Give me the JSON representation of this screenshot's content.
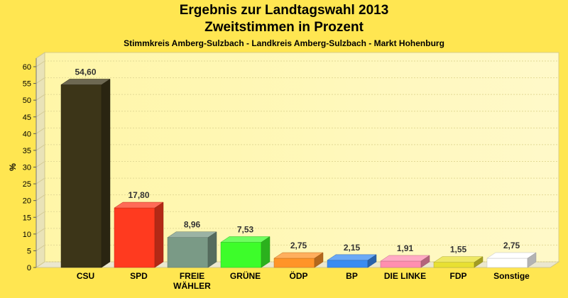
{
  "title": "Ergebnis zur Landtagswahl 2013",
  "subtitle": "Zweitstimmen in Prozent",
  "subsubtitle": "Stimmkreis Amberg-Sulzbach - Landkreis Amberg-Sulzbach - Markt Hohenburg",
  "chart_data": {
    "type": "bar",
    "title": "Ergebnis zur Landtagswahl 2013",
    "subtitle": "Zweitstimmen in Prozent",
    "ylabel": "%",
    "ylim": [
      0,
      60
    ],
    "yticks": [
      0,
      5,
      10,
      15,
      20,
      25,
      30,
      35,
      40,
      45,
      50,
      55,
      60
    ],
    "categories": [
      "CSU",
      "SPD",
      "FREIE WÄHLER",
      "GRÜNE",
      "ÖDP",
      "BP",
      "DIE LINKE",
      "FDP",
      "Sonstige"
    ],
    "category_lines": [
      [
        "CSU"
      ],
      [
        "SPD"
      ],
      [
        "FREIE",
        "WÄHLER"
      ],
      [
        "GRÜNE"
      ],
      [
        "ÖDP"
      ],
      [
        "BP"
      ],
      [
        "DIE LINKE"
      ],
      [
        "FDP"
      ],
      [
        "Sonstige"
      ]
    ],
    "values": [
      54.6,
      17.8,
      8.96,
      7.53,
      2.75,
      2.15,
      1.91,
      1.55,
      2.75
    ],
    "value_labels": [
      "54,60",
      "17,80",
      "8,96",
      "7,53",
      "2,75",
      "2,15",
      "1,91",
      "1,55",
      "2,75"
    ],
    "colors": [
      "#3c3518",
      "#ff3a1f",
      "#7a9a86",
      "#3dfd2a",
      "#ff9428",
      "#3a8cf2",
      "#ff8fb0",
      "#e8e032",
      "#ffffff"
    ],
    "grid": true,
    "legend": "none"
  }
}
